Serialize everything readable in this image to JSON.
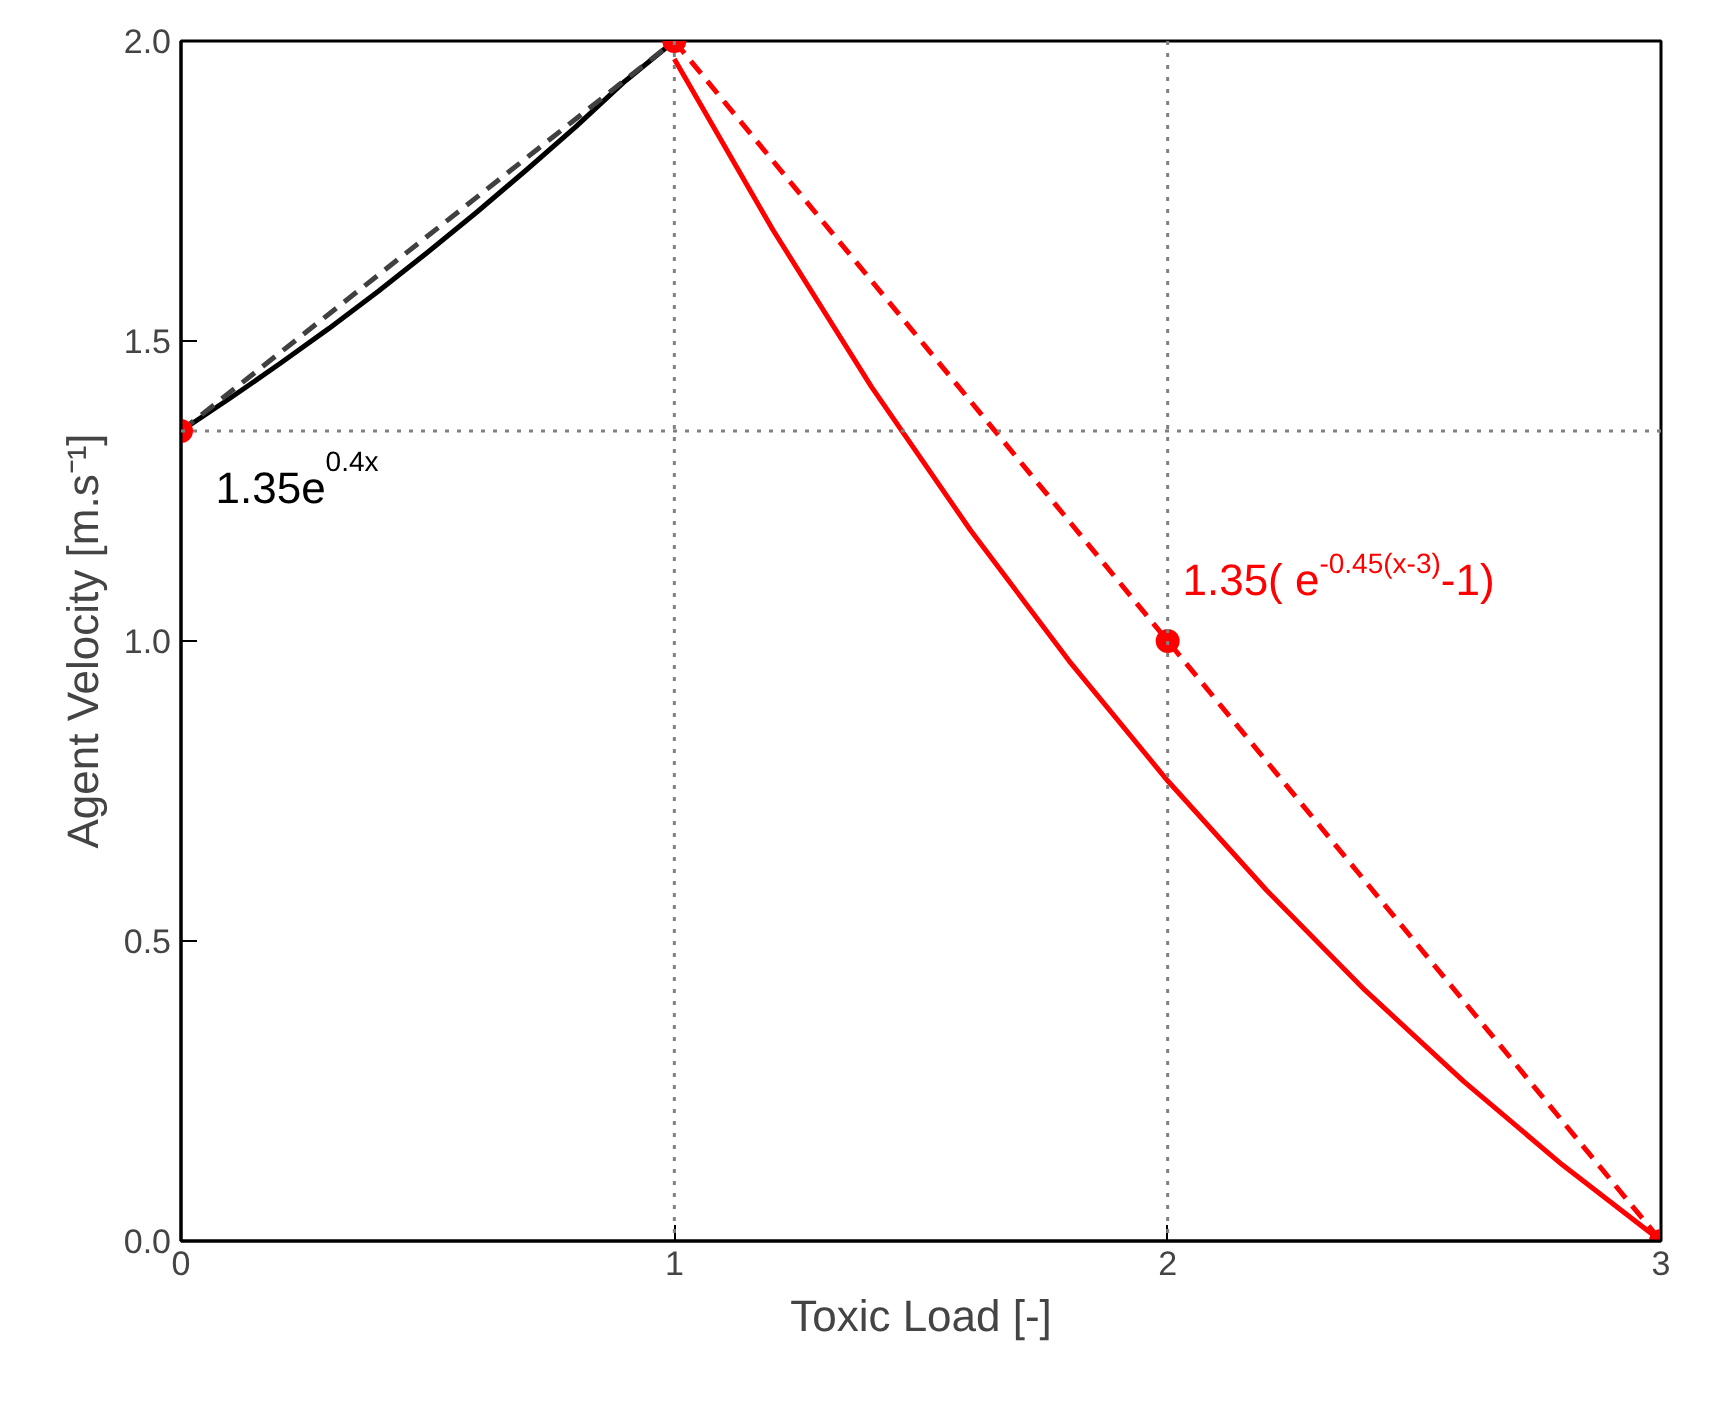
{
  "chart_data": {
    "type": "line",
    "xlabel": "Toxic Load [-]",
    "ylabel": "Agent Velocity [m.s⁻¹]",
    "xlim": [
      0,
      3
    ],
    "ylim": [
      0,
      2
    ],
    "xticks": [
      0,
      1,
      2,
      3
    ],
    "yticks": [
      {
        "value": 0,
        "label": "0.0"
      },
      {
        "value": 0.5,
        "label": "0.5"
      },
      {
        "value": 1,
        "label": "1.0"
      },
      {
        "value": 1.5,
        "label": "1.5"
      },
      {
        "value": 2,
        "label": "2.0"
      }
    ],
    "grid": false,
    "series": [
      {
        "color": "#000000",
        "line_style": "solid",
        "marker": "none",
        "x": [
          0,
          0.1,
          0.2,
          0.3,
          0.4,
          0.5,
          0.6,
          0.7,
          0.8,
          0.9,
          1
        ],
        "values": [
          1.35,
          1.405,
          1.462,
          1.521,
          1.583,
          1.648,
          1.715,
          1.785,
          1.857,
          1.933,
          2.0
        ]
      },
      {
        "color": "#404040",
        "line_style": "dashed",
        "marker": "none",
        "x": [
          0,
          1
        ],
        "values": [
          1.35,
          2.0
        ]
      },
      {
        "color": "#ff0000",
        "line_style": "solid",
        "marker": "none",
        "x": [
          1,
          1.2,
          1.4,
          1.6,
          1.8,
          2,
          2.2,
          2.4,
          2.6,
          2.8,
          3
        ],
        "values": [
          1.97,
          1.685,
          1.423,
          1.185,
          0.967,
          0.767,
          0.585,
          0.418,
          0.266,
          0.127,
          0
        ]
      },
      {
        "color": "#ff0000",
        "line_style": "dashed",
        "marker": "none",
        "x": [
          1,
          3
        ],
        "values": [
          2.0,
          0
        ]
      },
      {
        "type": "scatter",
        "color": "#ff0000",
        "marker": "circle",
        "x": [
          0,
          1,
          2,
          3
        ],
        "values": [
          1.35,
          2.0,
          1.0,
          0
        ]
      }
    ],
    "ref_lines": [
      {
        "axis": "x",
        "value": 1,
        "color": "#808080",
        "line_style": "dotted"
      },
      {
        "axis": "x",
        "value": 2,
        "color": "#808080",
        "line_style": "dotted"
      },
      {
        "axis": "y",
        "value": 1.35,
        "color": "#808080",
        "line_style": "dotted"
      }
    ],
    "annotations": [
      "1.35e$^{0.4x}$",
      "1.35( e$^{-0.45(x-3)}$-1)"
    ]
  }
}
